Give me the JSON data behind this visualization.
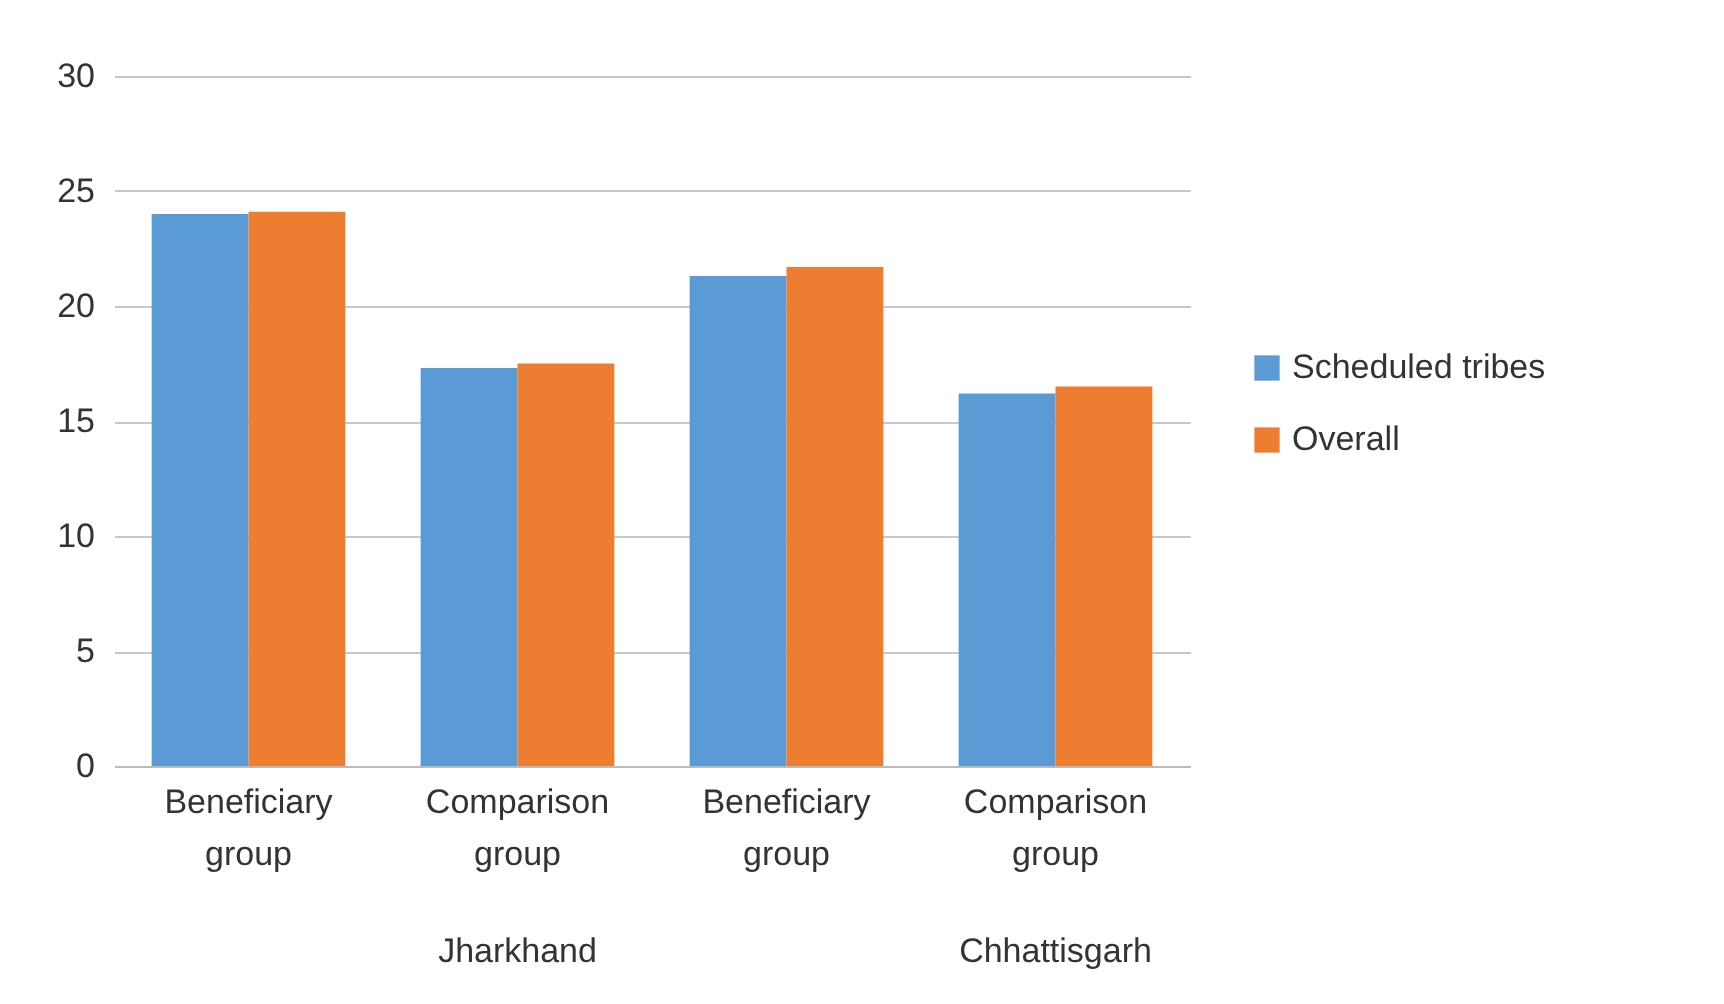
{
  "chart_data": {
    "type": "bar",
    "categories": [
      "Beneficiary group",
      "Comparison group",
      "Beneficiary group",
      "Comparison group"
    ],
    "series": [
      {
        "name": "Scheduled tribes",
        "color": "#5b9bd5",
        "values": [
          24.0,
          17.3,
          21.3,
          16.2
        ]
      },
      {
        "name": "Overall",
        "color": "#ed7d31",
        "values": [
          24.1,
          17.5,
          21.7,
          16.5
        ]
      }
    ],
    "annotations": [
      "Jharkhand",
      "Chhattisgarh"
    ],
    "ylim": [
      0,
      30
    ],
    "yticks": [
      0,
      5,
      10,
      15,
      20,
      25,
      30
    ],
    "grid": "y",
    "legend": "right"
  }
}
